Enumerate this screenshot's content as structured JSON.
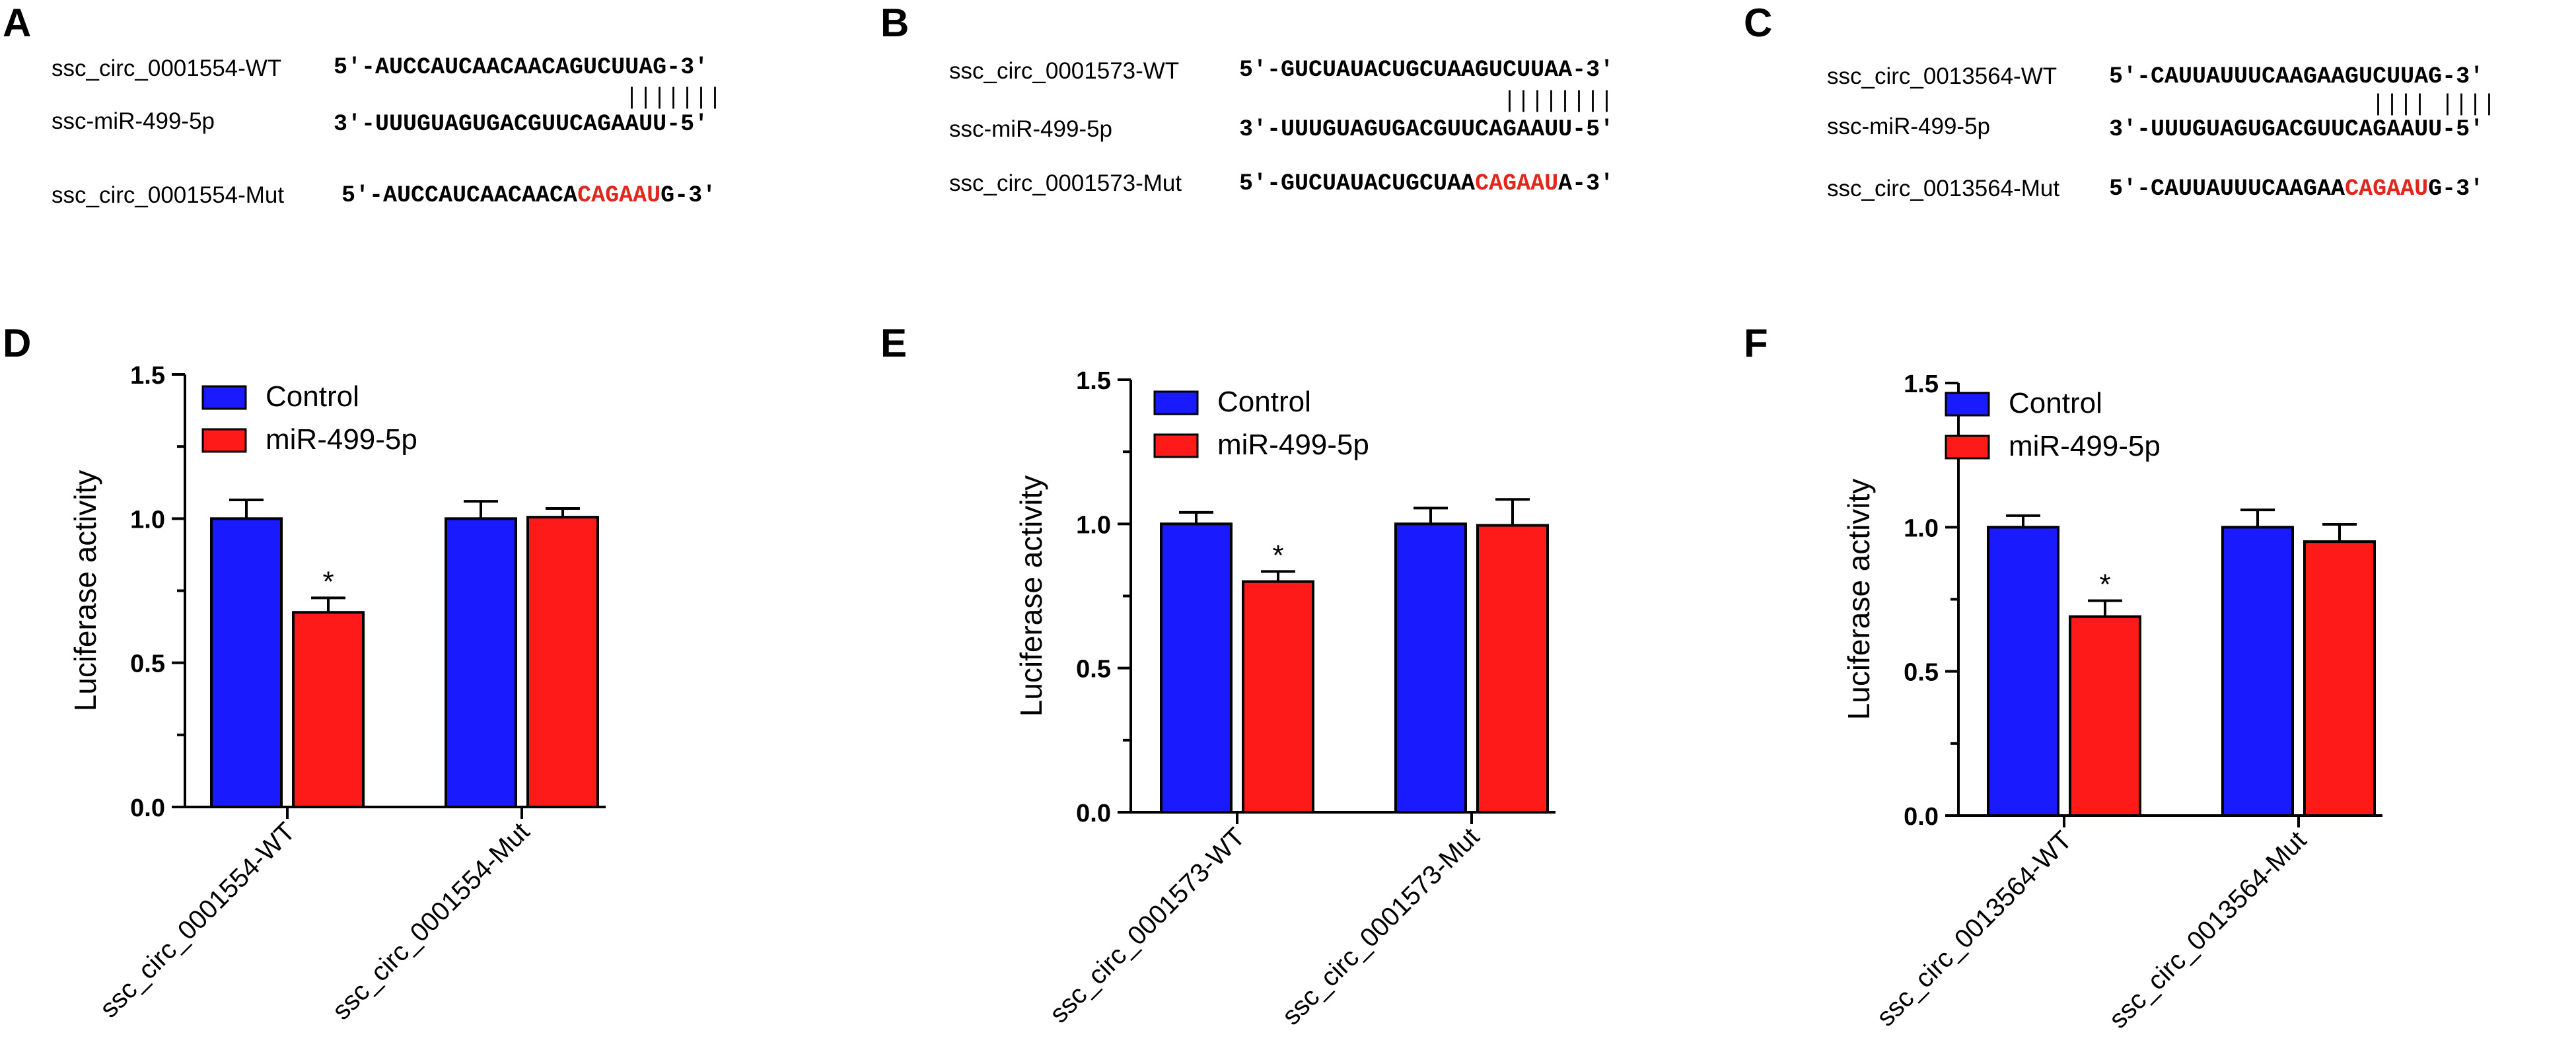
{
  "panels": {
    "A": "A",
    "B": "B",
    "C": "C",
    "D": "D",
    "E": "E",
    "F": "F"
  },
  "sequences": [
    {
      "wt_name": "ssc_circ_0001554-WT",
      "wt_seq": "5′-AUCCAUCAACAACAGUCUUAG-3′",
      "mir_name": "ssc-miR-499-5p",
      "mir_seq": "3′-UUUGUAGUGACGUUCAGAAUU-5′",
      "pairing": "|||||||",
      "mut_name": "ssc_circ_0001554-Mut",
      "mut_prefix": "5′-AUCCAUCAACAACA",
      "mut_highlight": "CAGAAU",
      "mut_suffix": "G-3′"
    },
    {
      "wt_name": "ssc_circ_0001573-WT",
      "wt_seq": "5′-GUCUAUACUGCUAAGUCUUAA-3′",
      "mir_name": "ssc-miR-499-5p",
      "mir_seq": "3′-UUUGUAGUGACGUUCAGAAUU-5′",
      "pairing": "||||||||",
      "mut_name": "ssc_circ_0001573-Mut",
      "mut_prefix": "5′-GUCUAUACUGCUAA",
      "mut_highlight": "CAGAAU",
      "mut_suffix": "A-3′"
    },
    {
      "wt_name": "ssc_circ_0013564-WT",
      "wt_seq": "5′-CAUUAUUUCAAGAAGUCUUAG-3′",
      "mir_name": "ssc-miR-499-5p",
      "mir_seq": "3′-UUUGUAGUGACGUUCAGAAUU-5′",
      "pairing": "|||| ||||",
      "mut_name": "ssc_circ_0013564-Mut",
      "mut_prefix": "5′-CAUUAUUUCAAGAA",
      "mut_highlight": "CAGAAU",
      "mut_suffix": "G-3′"
    }
  ],
  "colors": {
    "control": "#1a1aff",
    "mir": "#ff1a1a",
    "mutation_text": "#e3261d"
  },
  "chart_data": [
    {
      "type": "bar",
      "ylabel": "Luciferase activity",
      "ylim": [
        0,
        1.5
      ],
      "yticks": [
        "0.0",
        "0.5",
        "1.0",
        "1.5"
      ],
      "categories": [
        "ssc_circ_0001554-WT",
        "ssc_circ_0001554-Mut"
      ],
      "series": [
        {
          "name": "Control",
          "values": [
            1.0,
            1.0
          ],
          "errors": [
            0.065,
            0.06
          ]
        },
        {
          "name": "miR-499-5p",
          "values": [
            0.675,
            1.005
          ],
          "errors": [
            0.05,
            0.03
          ]
        }
      ],
      "annotations": [
        {
          "series": 1,
          "category": 0,
          "text": "*"
        }
      ],
      "legend": "top-left"
    },
    {
      "type": "bar",
      "ylabel": "Luciferase activity",
      "ylim": [
        0,
        1.5
      ],
      "yticks": [
        "0.0",
        "0.5",
        "1.0",
        "1.5"
      ],
      "categories": [
        "ssc_circ_0001573-WT",
        "ssc_circ_0001573-Mut"
      ],
      "series": [
        {
          "name": "Control",
          "values": [
            1.0,
            1.0
          ],
          "errors": [
            0.04,
            0.055
          ]
        },
        {
          "name": "miR-499-5p",
          "values": [
            0.8,
            0.995
          ],
          "errors": [
            0.035,
            0.09
          ]
        }
      ],
      "annotations": [
        {
          "series": 1,
          "category": 0,
          "text": "*"
        }
      ],
      "legend": "top-left"
    },
    {
      "type": "bar",
      "ylabel": "Luciferase activity",
      "ylim": [
        0,
        1.5
      ],
      "yticks": [
        "0.0",
        "0.5",
        "1.0",
        "1.5"
      ],
      "categories": [
        "ssc_circ_0013564-WT",
        "ssc_circ_0013564-Mut"
      ],
      "series": [
        {
          "name": "Control",
          "values": [
            1.0,
            1.0
          ],
          "errors": [
            0.04,
            0.06
          ]
        },
        {
          "name": "miR-499-5p",
          "values": [
            0.69,
            0.95
          ],
          "errors": [
            0.055,
            0.06
          ]
        }
      ],
      "annotations": [
        {
          "series": 1,
          "category": 0,
          "text": "*"
        }
      ],
      "legend": "top-left"
    }
  ]
}
